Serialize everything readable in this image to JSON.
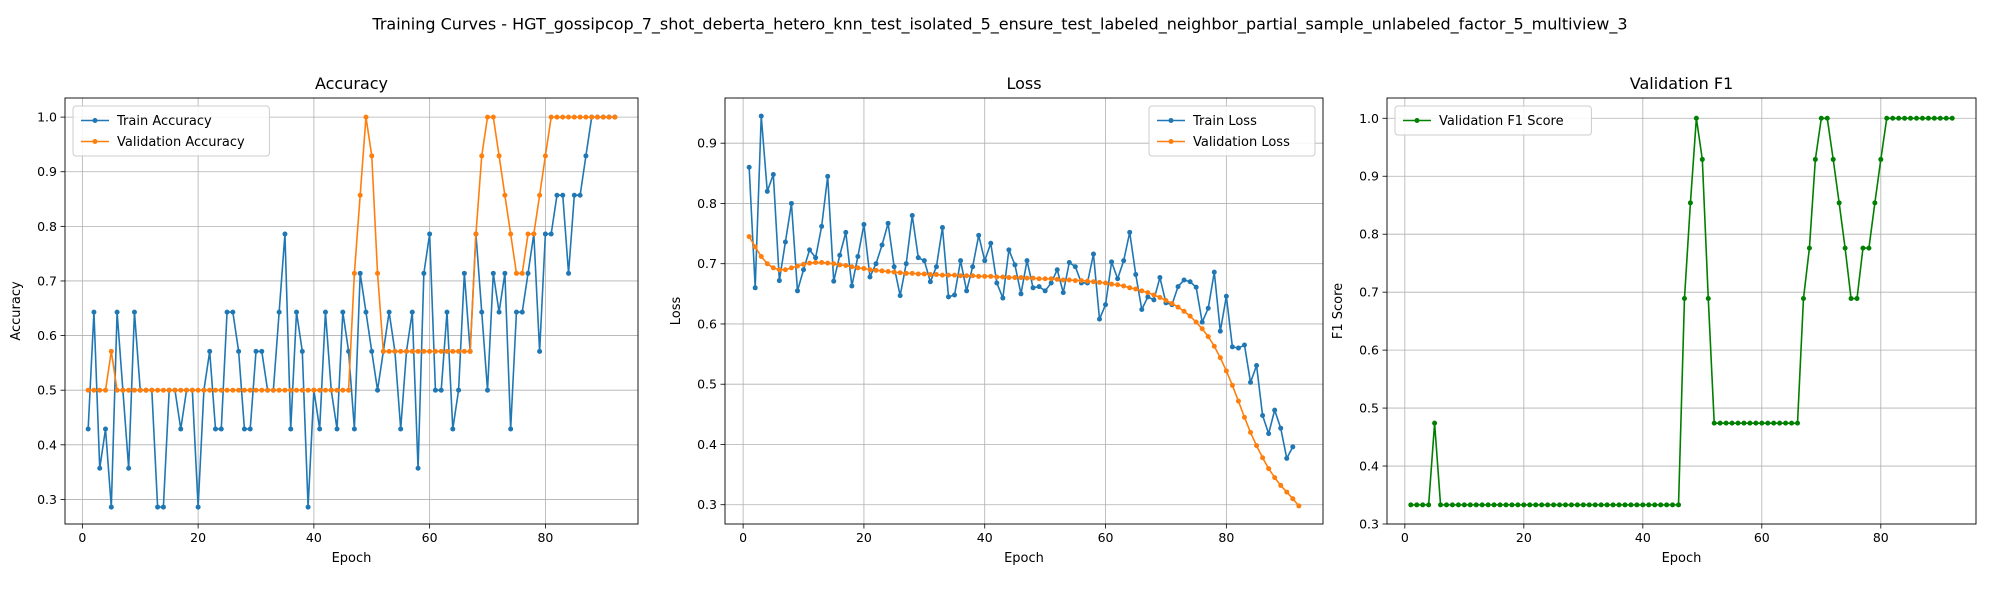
{
  "figure": {
    "title": "Training Curves - HGT_gossipcop_7_shot_deberta_hetero_knn_test_isolated_5_ensure_test_labeled_neighbor_partial_sample_unlabeled_factor_5_multiview_3"
  },
  "colors": {
    "blue": "#1f77b4",
    "orange": "#ff7f0e",
    "green": "#008000",
    "grid": "#b0b0b0"
  },
  "chart_data": [
    {
      "type": "line",
      "title": "Accuracy",
      "xlabel": "Epoch",
      "ylabel": "Accuracy",
      "xlim": [
        -3,
        96
      ],
      "ylim": [
        0.255,
        1.035
      ],
      "xticks": [
        0,
        20,
        40,
        60,
        80
      ],
      "yticks": [
        0.3,
        0.4,
        0.5,
        0.6,
        0.7,
        0.8,
        0.9,
        1.0
      ],
      "ytick_labels": [
        "0.3",
        "0.4",
        "0.5",
        "0.6",
        "0.7",
        "0.8",
        "0.9",
        "1.0"
      ],
      "grid": true,
      "legend_position": "upper left",
      "series": [
        {
          "name": "Train Accuracy",
          "color": "#1f77b4",
          "x_start": 1,
          "values": [
            0.429,
            0.643,
            0.357,
            0.429,
            0.286,
            0.643,
            0.5,
            0.357,
            0.643,
            0.5,
            0.5,
            0.5,
            0.286,
            0.286,
            0.5,
            0.5,
            0.429,
            0.5,
            0.5,
            0.286,
            0.5,
            0.571,
            0.429,
            0.429,
            0.643,
            0.643,
            0.571,
            0.429,
            0.429,
            0.571,
            0.571,
            0.5,
            0.5,
            0.643,
            0.786,
            0.429,
            0.643,
            0.571,
            0.286,
            0.5,
            0.429,
            0.643,
            0.5,
            0.429,
            0.643,
            0.571,
            0.429,
            0.714,
            0.643,
            0.571,
            0.5,
            0.571,
            0.643,
            0.571,
            0.429,
            0.571,
            0.643,
            0.357,
            0.714,
            0.786,
            0.5,
            0.5,
            0.643,
            0.429,
            0.5,
            0.714,
            0.571,
            0.786,
            0.643,
            0.5,
            0.714,
            0.643,
            0.714,
            0.429,
            0.643,
            0.643,
            0.714,
            0.786,
            0.571,
            0.786,
            0.786,
            0.857,
            0.857,
            0.714,
            0.857,
            0.857,
            0.929,
            1.0,
            1.0,
            1.0,
            1.0,
            1.0
          ]
        },
        {
          "name": "Validation Accuracy",
          "color": "#ff7f0e",
          "x_start": 1,
          "values": [
            0.5,
            0.5,
            0.5,
            0.5,
            0.571,
            0.5,
            0.5,
            0.5,
            0.5,
            0.5,
            0.5,
            0.5,
            0.5,
            0.5,
            0.5,
            0.5,
            0.5,
            0.5,
            0.5,
            0.5,
            0.5,
            0.5,
            0.5,
            0.5,
            0.5,
            0.5,
            0.5,
            0.5,
            0.5,
            0.5,
            0.5,
            0.5,
            0.5,
            0.5,
            0.5,
            0.5,
            0.5,
            0.5,
            0.5,
            0.5,
            0.5,
            0.5,
            0.5,
            0.5,
            0.5,
            0.5,
            0.714,
            0.857,
            1.0,
            0.929,
            0.714,
            0.571,
            0.571,
            0.571,
            0.571,
            0.571,
            0.571,
            0.571,
            0.571,
            0.571,
            0.571,
            0.571,
            0.571,
            0.571,
            0.571,
            0.571,
            0.571,
            0.786,
            0.929,
            1.0,
            1.0,
            0.929,
            0.857,
            0.786,
            0.714,
            0.714,
            0.786,
            0.786,
            0.857,
            0.929,
            1.0,
            1.0,
            1.0,
            1.0,
            1.0,
            1.0,
            1.0,
            1.0,
            1.0,
            1.0,
            1.0,
            1.0
          ]
        }
      ]
    },
    {
      "type": "line",
      "title": "Loss",
      "xlabel": "Epoch",
      "ylabel": "Loss",
      "xlim": [
        -3,
        96
      ],
      "ylim": [
        0.268,
        0.975
      ],
      "xticks": [
        0,
        20,
        40,
        60,
        80
      ],
      "yticks": [
        0.3,
        0.4,
        0.5,
        0.6,
        0.7,
        0.8,
        0.9
      ],
      "ytick_labels": [
        "0.3",
        "0.4",
        "0.5",
        "0.6",
        "0.7",
        "0.8",
        "0.9"
      ],
      "grid": true,
      "legend_position": "upper right",
      "series": [
        {
          "name": "Train Loss",
          "color": "#1f77b4",
          "x_start": 1,
          "values": [
            0.86,
            0.66,
            0.945,
            0.82,
            0.848,
            0.672,
            0.736,
            0.8,
            0.655,
            0.69,
            0.723,
            0.71,
            0.762,
            0.845,
            0.671,
            0.714,
            0.752,
            0.663,
            0.712,
            0.765,
            0.678,
            0.7,
            0.731,
            0.767,
            0.695,
            0.647,
            0.7,
            0.78,
            0.71,
            0.705,
            0.67,
            0.695,
            0.76,
            0.645,
            0.648,
            0.705,
            0.655,
            0.695,
            0.747,
            0.705,
            0.734,
            0.668,
            0.643,
            0.723,
            0.698,
            0.65,
            0.705,
            0.66,
            0.662,
            0.655,
            0.668,
            0.69,
            0.652,
            0.702,
            0.695,
            0.668,
            0.668,
            0.716,
            0.608,
            0.632,
            0.703,
            0.675,
            0.705,
            0.752,
            0.682,
            0.624,
            0.645,
            0.64,
            0.677,
            0.635,
            0.632,
            0.662,
            0.673,
            0.67,
            0.661,
            0.603,
            0.626,
            0.686,
            0.588,
            0.646,
            0.562,
            0.56,
            0.565,
            0.503,
            0.531,
            0.448,
            0.418,
            0.457,
            0.427,
            0.377,
            0.396
          ]
        },
        {
          "name": "Validation Loss",
          "color": "#ff7f0e",
          "x_start": 1,
          "values": [
            0.745,
            0.728,
            0.712,
            0.7,
            0.693,
            0.69,
            0.69,
            0.693,
            0.696,
            0.699,
            0.701,
            0.702,
            0.702,
            0.701,
            0.7,
            0.698,
            0.697,
            0.695,
            0.693,
            0.692,
            0.69,
            0.689,
            0.688,
            0.687,
            0.686,
            0.685,
            0.684,
            0.684,
            0.683,
            0.683,
            0.682,
            0.682,
            0.681,
            0.681,
            0.681,
            0.68,
            0.68,
            0.68,
            0.679,
            0.679,
            0.679,
            0.678,
            0.678,
            0.677,
            0.677,
            0.677,
            0.676,
            0.676,
            0.675,
            0.675,
            0.675,
            0.674,
            0.673,
            0.673,
            0.672,
            0.672,
            0.671,
            0.67,
            0.669,
            0.668,
            0.666,
            0.665,
            0.663,
            0.66,
            0.658,
            0.655,
            0.652,
            0.648,
            0.644,
            0.639,
            0.634,
            0.628,
            0.621,
            0.613,
            0.603,
            0.592,
            0.579,
            0.563,
            0.544,
            0.522,
            0.498,
            0.472,
            0.445,
            0.42,
            0.398,
            0.378,
            0.36,
            0.345,
            0.332,
            0.321,
            0.31,
            0.298
          ]
        }
      ]
    },
    {
      "type": "line",
      "title": "Validation F1",
      "xlabel": "Epoch",
      "ylabel": "F1 Score",
      "xlim": [
        -3,
        96
      ],
      "ylim": [
        0.3,
        1.035
      ],
      "xticks": [
        0,
        20,
        40,
        60,
        80
      ],
      "yticks": [
        0.3,
        0.4,
        0.5,
        0.6,
        0.7,
        0.8,
        0.9,
        1.0
      ],
      "ytick_labels": [
        "0.3",
        "0.4",
        "0.5",
        "0.6",
        "0.7",
        "0.8",
        "0.9",
        "1.0"
      ],
      "grid": true,
      "legend_position": "upper left",
      "series": [
        {
          "name": "Validation F1 Score",
          "color": "#008000",
          "x_start": 1,
          "values": [
            0.333,
            0.333,
            0.333,
            0.333,
            0.474,
            0.333,
            0.333,
            0.333,
            0.333,
            0.333,
            0.333,
            0.333,
            0.333,
            0.333,
            0.333,
            0.333,
            0.333,
            0.333,
            0.333,
            0.333,
            0.333,
            0.333,
            0.333,
            0.333,
            0.333,
            0.333,
            0.333,
            0.333,
            0.333,
            0.333,
            0.333,
            0.333,
            0.333,
            0.333,
            0.333,
            0.333,
            0.333,
            0.333,
            0.333,
            0.333,
            0.333,
            0.333,
            0.333,
            0.333,
            0.333,
            0.333,
            0.689,
            0.854,
            1.0,
            0.929,
            0.689,
            0.474,
            0.474,
            0.474,
            0.474,
            0.474,
            0.474,
            0.474,
            0.474,
            0.474,
            0.474,
            0.474,
            0.474,
            0.474,
            0.474,
            0.474,
            0.689,
            0.776,
            0.929,
            1.0,
            1.0,
            0.929,
            0.854,
            0.776,
            0.689,
            0.689,
            0.776,
            0.776,
            0.854,
            0.929,
            1.0,
            1.0,
            1.0,
            1.0,
            1.0,
            1.0,
            1.0,
            1.0,
            1.0,
            1.0,
            1.0,
            1.0
          ]
        }
      ]
    }
  ]
}
